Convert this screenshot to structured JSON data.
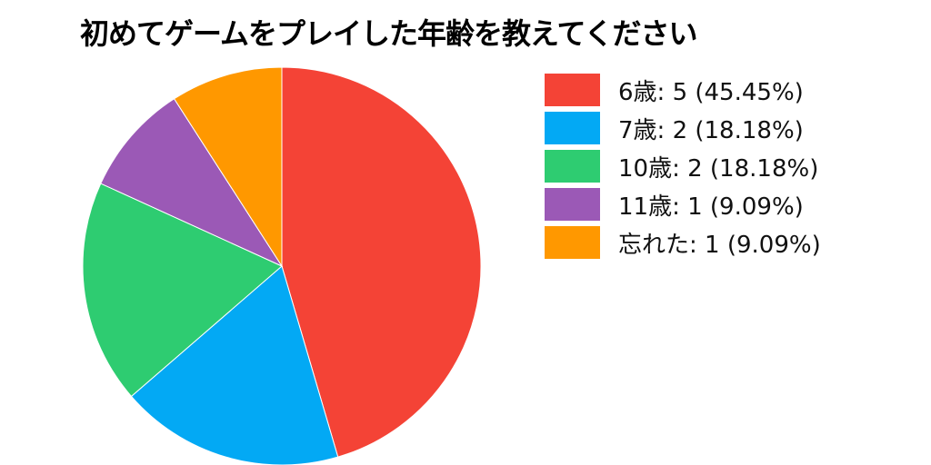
{
  "chart_data": {
    "type": "pie",
    "title": "初めてゲームをプレイした年齢を教えてください",
    "legend_position": "right",
    "slices": [
      {
        "label": "6歳",
        "value": 5,
        "percent": 45.45,
        "color": "#F44336",
        "legend": "6歳: 5 (45.45%)"
      },
      {
        "label": "7歳",
        "value": 2,
        "percent": 18.18,
        "color": "#03A9F4",
        "legend": "7歳: 2 (18.18%)"
      },
      {
        "label": "10歳",
        "value": 2,
        "percent": 18.18,
        "color": "#2ECC71",
        "legend": "10歳: 2 (18.18%)"
      },
      {
        "label": "11歳",
        "value": 1,
        "percent": 9.09,
        "color": "#9B59B6",
        "legend": "11歳: 1 (9.09%)"
      },
      {
        "label": "忘れた",
        "value": 1,
        "percent": 9.09,
        "color": "#FF9800",
        "legend": "忘れた: 1 (9.09%)"
      }
    ]
  }
}
